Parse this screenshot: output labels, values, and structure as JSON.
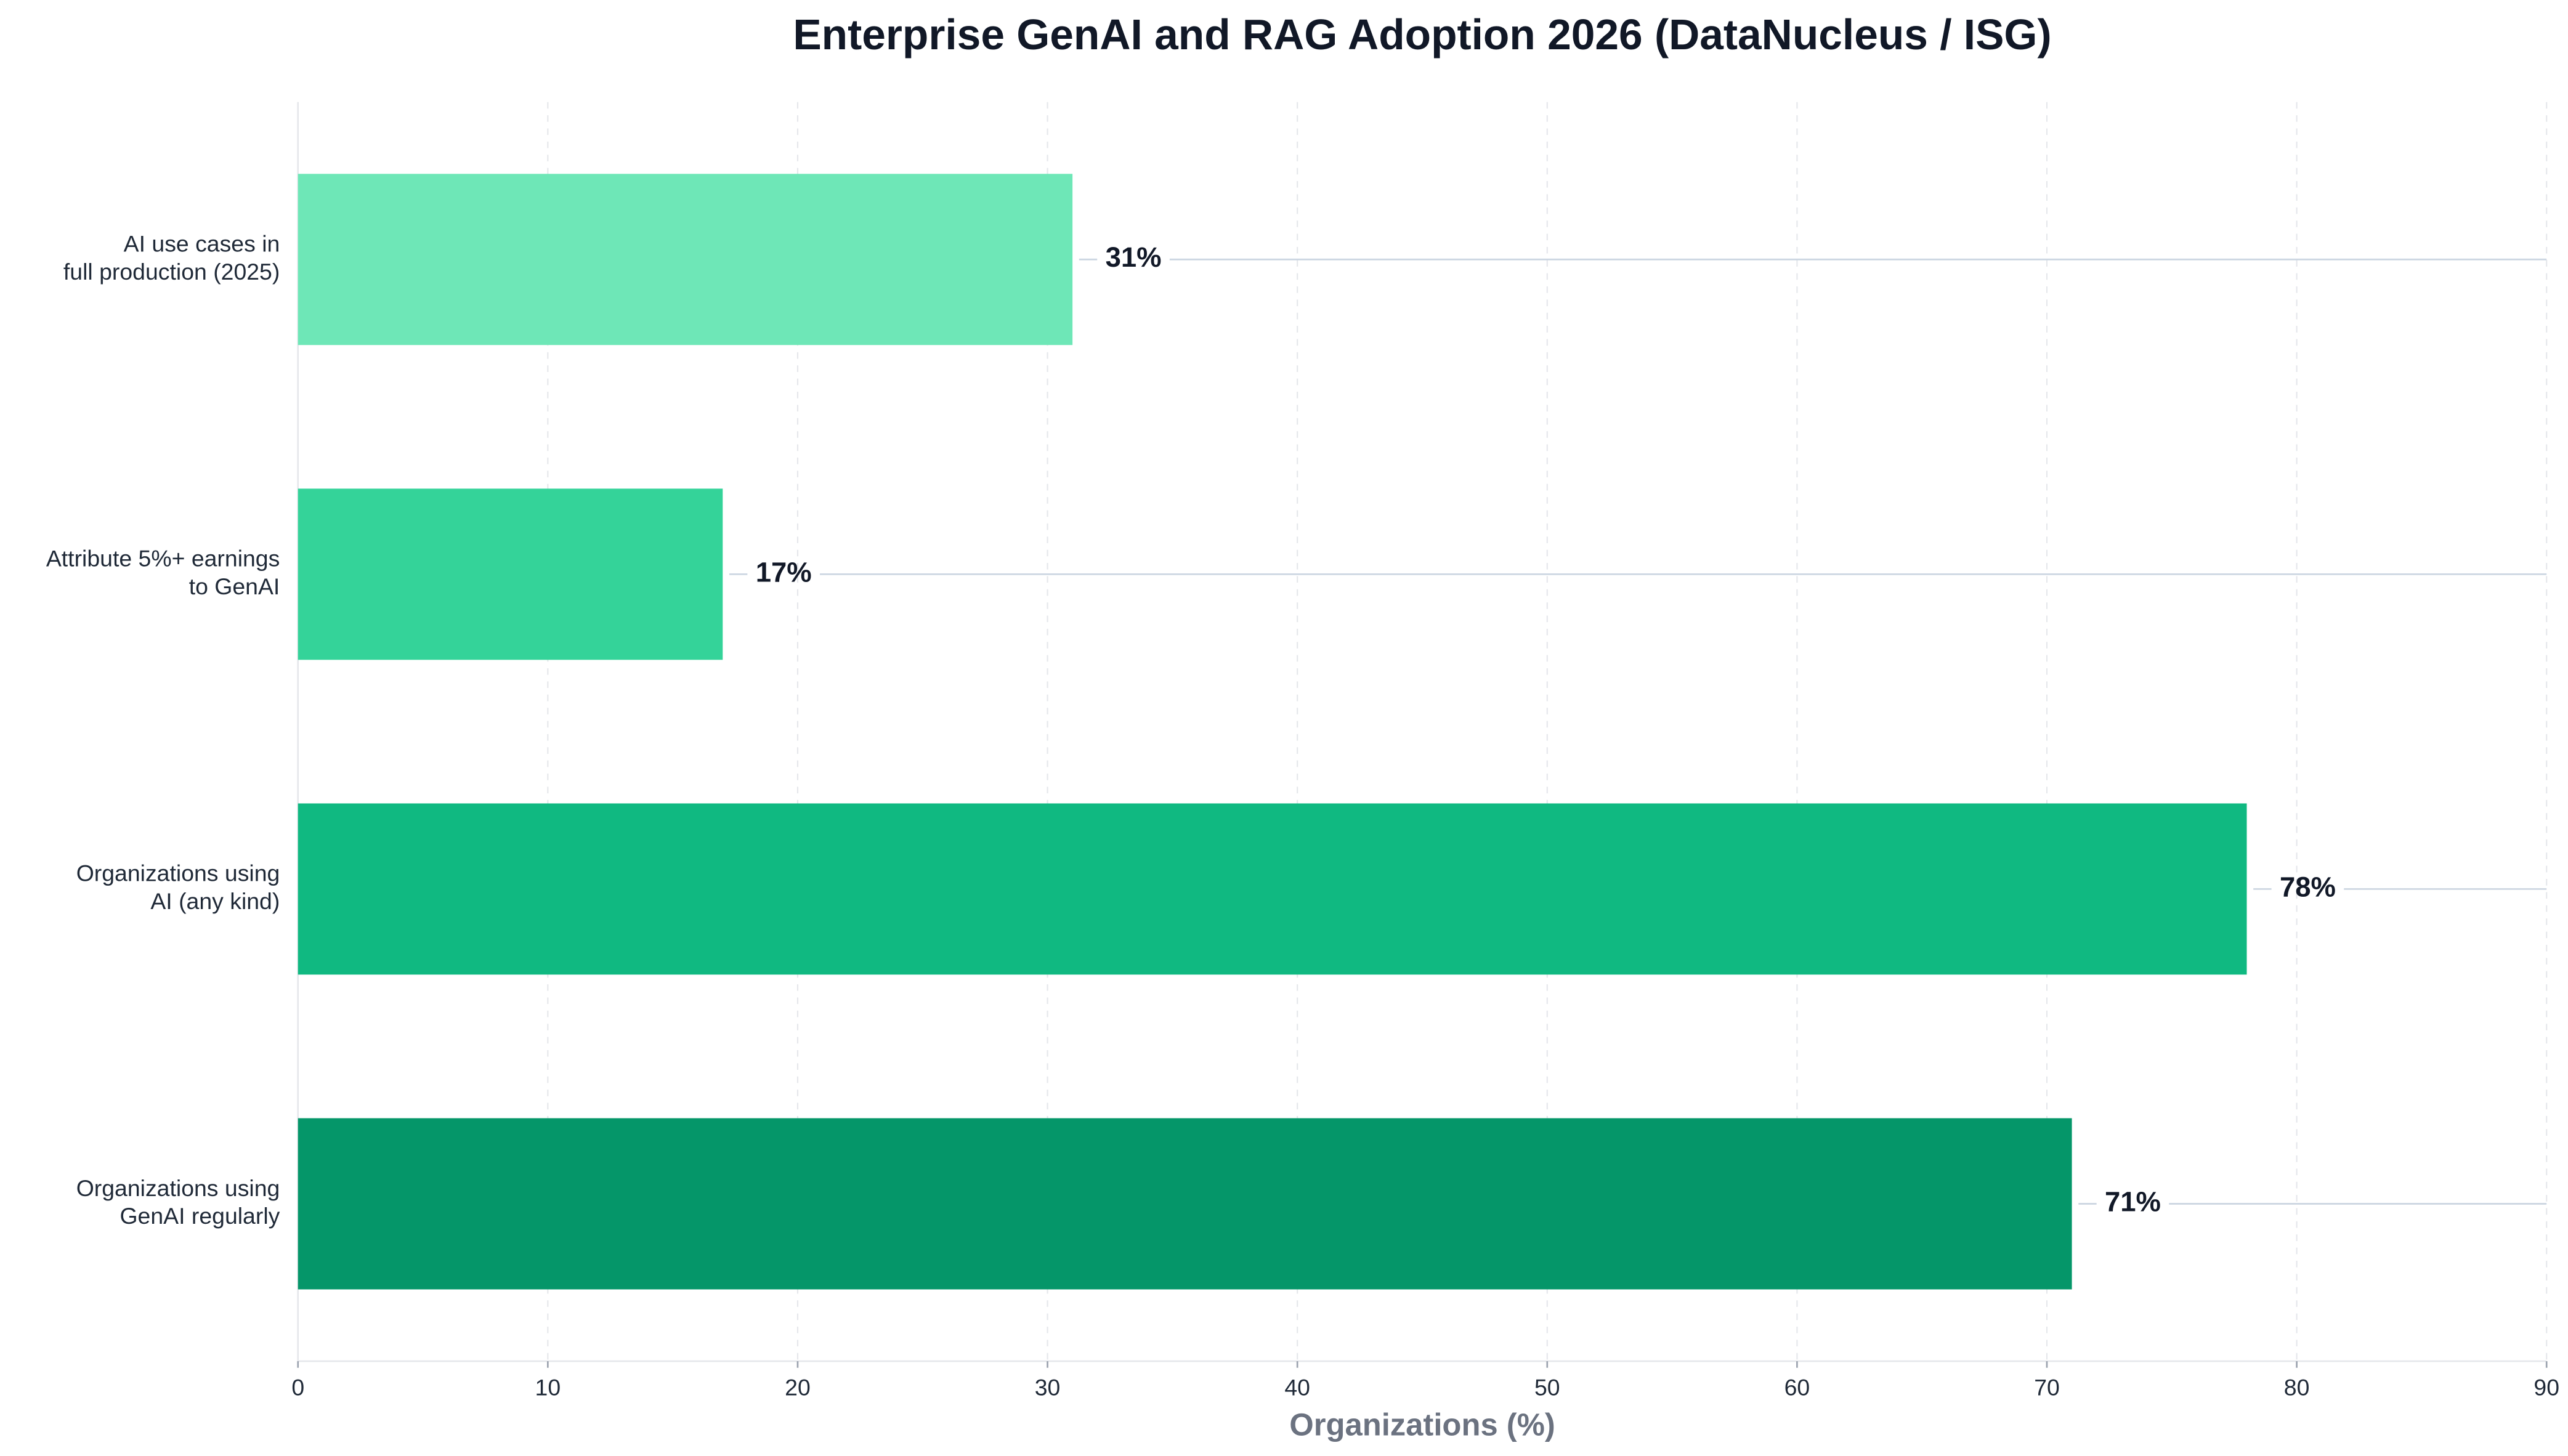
{
  "chart_data": {
    "type": "barh",
    "title": "Enterprise GenAI and RAG Adoption 2026 (DataNucleus / ISG)",
    "xlabel": "Organizations (%)",
    "categories": [
      "AI use cases in\nfull production (2025)",
      "Attribute 5%+ earnings\nto GenAI",
      "Organizations using\nAI (any kind)",
      "Organizations using\nGenAI regularly"
    ],
    "values": [
      31,
      17,
      78,
      71
    ],
    "value_labels": [
      "31%",
      "17%",
      "78%",
      "71%"
    ],
    "colors": [
      "#6ee7b7",
      "#34d399",
      "#10b981",
      "#059669"
    ],
    "xlim": [
      0,
      90
    ],
    "xticks": [
      0,
      10,
      20,
      30,
      40,
      50,
      60,
      70,
      80,
      90
    ],
    "grid": true
  }
}
